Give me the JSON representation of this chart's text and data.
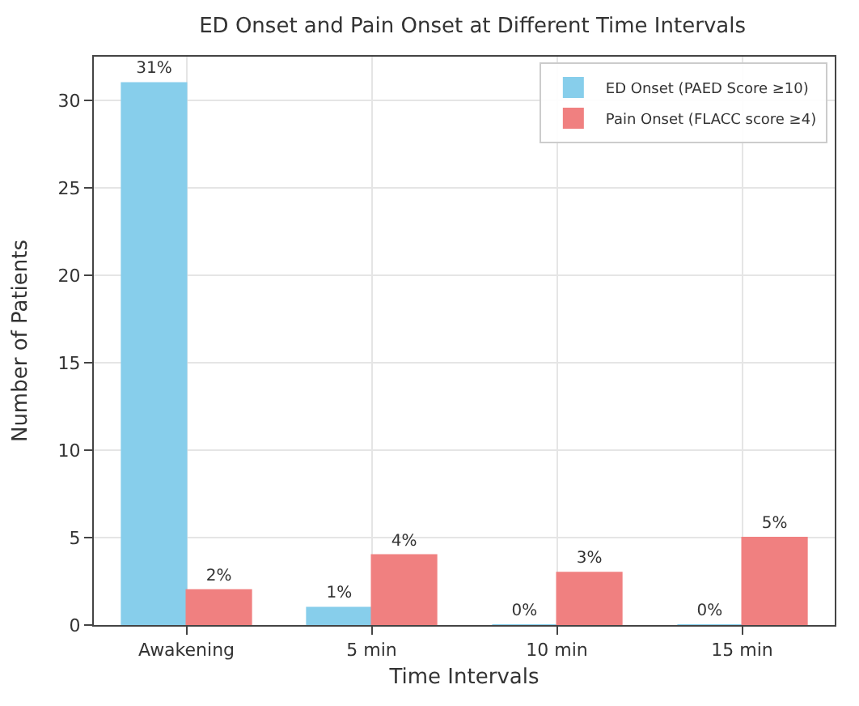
{
  "chart_data": {
    "type": "bar",
    "title": "ED Onset and Pain Onset at Different Time Intervals",
    "xlabel": "Time Intervals",
    "ylabel": "Number of Patients",
    "categories": [
      "Awakening",
      "5 min",
      "10 min",
      "15 min"
    ],
    "series": [
      {
        "name": "ED Onset (PAED Score ≥10)",
        "color": "#87ceeb",
        "values": [
          31,
          1,
          0,
          0
        ],
        "value_labels": [
          "31%",
          "1%",
          "0%",
          "0%"
        ]
      },
      {
        "name": "Pain Onset (FLACC score ≥4)",
        "color": "#f08080",
        "values": [
          2,
          4,
          3,
          5
        ],
        "value_labels": [
          "2%",
          "4%",
          "3%",
          "5%"
        ]
      }
    ],
    "ylim": [
      0,
      32.5
    ],
    "yticks": [
      0,
      5,
      10,
      15,
      20,
      25,
      30
    ],
    "grid": true,
    "legend": "top right"
  }
}
